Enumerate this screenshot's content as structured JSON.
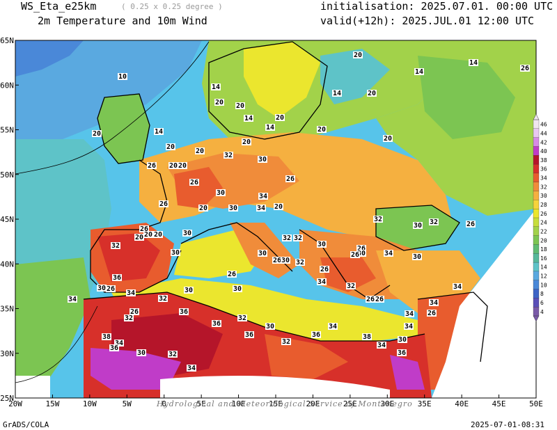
{
  "header": {
    "model": "WS_Eta_e25km",
    "resolution": "( 0.25 x 0.25 degree )",
    "product": "2m Temperature and 10m Wind",
    "initialisation": "initialisation: 2025.07.01. 00:00 UTC",
    "valid": "valid(+12h): 2025.JUL.01 12:00 UTC"
  },
  "footer": {
    "left": "GrADS/COLA",
    "right": "2025-07-01-08:31"
  },
  "watermark": "Hydrological and Meteorological Service of Montenegro",
  "axes": {
    "x_ticks": [
      "20W",
      "15W",
      "10W",
      "5W",
      "0",
      "5E",
      "10E",
      "15E",
      "20E",
      "25E",
      "30E",
      "35E",
      "40E",
      "45E",
      "50E"
    ],
    "y_ticks": [
      "65N",
      "60N",
      "55N",
      "50N",
      "45N",
      "40N",
      "35N",
      "30N",
      "25N"
    ]
  },
  "colorbar": {
    "levels": [
      "46",
      "44",
      "42",
      "40",
      "38",
      "36",
      "34",
      "32",
      "30",
      "28",
      "26",
      "24",
      "22",
      "20",
      "18",
      "16",
      "14",
      "12",
      "10",
      "8",
      "6",
      "4"
    ],
    "colors": [
      "#f0e6f0",
      "#e8c8f0",
      "#d78be6",
      "#c03cc8",
      "#b5152a",
      "#d7302a",
      "#e85c2e",
      "#f08c3a",
      "#f5b040",
      "#f6d33c",
      "#ebe62e",
      "#c7de3c",
      "#a2d24a",
      "#7cc552",
      "#5fbb72",
      "#56b89a",
      "#5ec3c8",
      "#5aa9e0",
      "#4a88d8",
      "#3e64c6",
      "#5a4fb8",
      "#7a5aa8"
    ]
  },
  "contour_labels": [
    "10",
    "14",
    "14",
    "20",
    "20",
    "14",
    "14",
    "20",
    "20",
    "20",
    "14",
    "20",
    "20",
    "14",
    "14",
    "26",
    "20",
    "20",
    "20",
    "20",
    "26",
    "32",
    "30",
    "20",
    "20",
    "30",
    "26",
    "26",
    "34",
    "30",
    "26",
    "20",
    "34",
    "32",
    "30",
    "32",
    "26",
    "26",
    "20",
    "20",
    "20",
    "30",
    "32",
    "32",
    "30",
    "26",
    "32",
    "30",
    "30",
    "26",
    "30",
    "32",
    "30",
    "26",
    "34",
    "30",
    "26",
    "26",
    "30",
    "36",
    "26",
    "34",
    "32",
    "26",
    "26",
    "34",
    "34",
    "32",
    "30",
    "30",
    "34",
    "36",
    "32",
    "26",
    "26",
    "34",
    "32",
    "30",
    "34",
    "36",
    "34",
    "38",
    "36",
    "34",
    "32",
    "36",
    "38",
    "34",
    "36",
    "32",
    "36",
    "30",
    "34",
    "30",
    "34",
    "20"
  ]
}
